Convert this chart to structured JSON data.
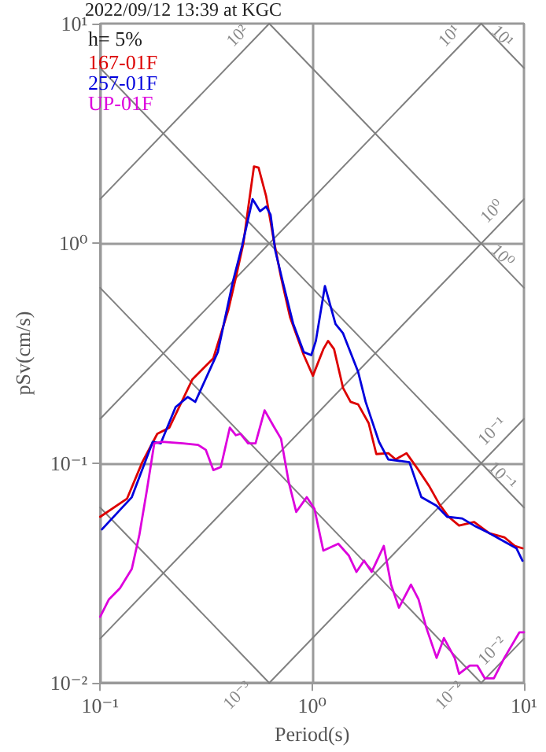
{
  "chart_data": {
    "type": "line",
    "title": "2022/09/12 13:39 at KGC",
    "xlabel": "Period(s)",
    "ylabel": "pSv(cm/s)",
    "annotations": [
      "h= 5%",
      {
        "text": "10²",
        "x": 0.628,
        "y": 10
      },
      {
        "text": "10¹",
        "x": 6.28,
        "y": 10
      },
      {
        "text": "10⁰",
        "x": 10,
        "y": 1.59
      },
      {
        "text": "10⁻¹",
        "x": 10,
        "y": 0.159
      },
      {
        "text": "10⁻²",
        "x": 10,
        "y": 0.0159
      },
      {
        "text": "10¹",
        "x": 10,
        "y": 6.28
      },
      {
        "text": "10⁰",
        "x": 10,
        "y": 0.628
      },
      {
        "text": "10⁻¹",
        "x": 10,
        "y": 0.0628
      },
      {
        "text": "10⁻²",
        "x": 6.28,
        "y": 0.01
      },
      {
        "text": "10⁻³",
        "x": 0.628,
        "y": 0.01
      }
    ],
    "log": "xy",
    "grid": true,
    "legend": "top left",
    "xlim": [
      0.1,
      10
    ],
    "ylim": [
      0.01,
      10
    ],
    "xticks": [
      {
        "value": 0.1,
        "label": "10⁻¹"
      },
      {
        "value": 1,
        "label": "10⁰"
      },
      {
        "value": 10,
        "label": "10¹"
      }
    ],
    "yticks": [
      {
        "value": 0.01,
        "label": "10⁻²"
      },
      {
        "value": 0.1,
        "label": "10⁻¹"
      },
      {
        "value": 1,
        "label": "10⁰"
      },
      {
        "value": 10,
        "label": "10¹"
      }
    ],
    "series": [
      {
        "name": "167-01F",
        "color": "#dd0000",
        "x": [
          0.1,
          0.134,
          0.158,
          0.186,
          0.212,
          0.272,
          0.342,
          0.403,
          0.437,
          0.474,
          0.499,
          0.532,
          0.559,
          0.607,
          0.659,
          0.714,
          0.788,
          0.914,
          1.009,
          1.13,
          1.19,
          1.27,
          1.4,
          1.52,
          1.65,
          1.85,
          2.01,
          2.29,
          2.48,
          2.79,
          3.18,
          3.56,
          3.99,
          4.41,
          4.94,
          5.82,
          6.86,
          8.08,
          9.06,
          9.84
        ],
        "values": [
          0.057,
          0.069,
          0.101,
          0.136,
          0.145,
          0.24,
          0.3,
          0.5,
          0.7,
          1.0,
          1.44,
          2.24,
          2.21,
          1.64,
          1.04,
          0.7,
          0.46,
          0.31,
          0.25,
          0.33,
          0.36,
          0.33,
          0.22,
          0.19,
          0.185,
          0.152,
          0.11,
          0.111,
          0.104,
          0.111,
          0.093,
          0.079,
          0.065,
          0.057,
          0.052,
          0.054,
          0.048,
          0.046,
          0.042,
          0.041
        ]
      },
      {
        "name": "257-01F",
        "color": "#0000dd",
        "x": [
          0.102,
          0.141,
          0.177,
          0.193,
          0.227,
          0.259,
          0.281,
          0.359,
          0.423,
          0.467,
          0.524,
          0.568,
          0.607,
          0.637,
          0.67,
          0.727,
          0.815,
          0.914,
          0.991,
          1.042,
          1.15,
          1.29,
          1.4,
          1.65,
          1.79,
          2.07,
          2.29,
          2.88,
          3.28,
          3.87,
          4.34,
          5.11,
          5.82,
          6.86,
          8.08,
          9.21,
          9.84
        ],
        "values": [
          0.05,
          0.07,
          0.125,
          0.123,
          0.18,
          0.2,
          0.19,
          0.32,
          0.67,
          0.97,
          1.59,
          1.4,
          1.47,
          1.35,
          0.93,
          0.67,
          0.43,
          0.32,
          0.31,
          0.36,
          0.64,
          0.43,
          0.39,
          0.26,
          0.19,
          0.125,
          0.104,
          0.101,
          0.07,
          0.064,
          0.057,
          0.056,
          0.052,
          0.048,
          0.044,
          0.041,
          0.036
        ]
      },
      {
        "name": "UP-01F",
        "color": "#dd00dd",
        "x": [
          0.1,
          0.11,
          0.124,
          0.141,
          0.153,
          0.166,
          0.18,
          0.196,
          0.246,
          0.29,
          0.315,
          0.342,
          0.371,
          0.409,
          0.437,
          0.459,
          0.499,
          0.541,
          0.597,
          0.659,
          0.714,
          0.776,
          0.842,
          0.944,
          1.026,
          1.13,
          1.33,
          1.49,
          1.62,
          1.76,
          1.91,
          2.18,
          2.36,
          2.57,
          2.93,
          3.18,
          3.45,
          3.87,
          4.19,
          4.71,
          4.94,
          5.55,
          6.02,
          6.53,
          7.21,
          8.08,
          9.52,
          10
        ],
        "values": [
          0.02,
          0.024,
          0.027,
          0.033,
          0.047,
          0.075,
          0.123,
          0.125,
          0.123,
          0.121,
          0.115,
          0.093,
          0.096,
          0.145,
          0.134,
          0.136,
          0.123,
          0.123,
          0.174,
          0.147,
          0.129,
          0.082,
          0.06,
          0.07,
          0.062,
          0.04,
          0.043,
          0.038,
          0.032,
          0.036,
          0.032,
          0.042,
          0.028,
          0.022,
          0.028,
          0.024,
          0.018,
          0.013,
          0.016,
          0.013,
          0.011,
          0.012,
          0.012,
          0.0105,
          0.0105,
          0.013,
          0.017,
          0.017
        ]
      },
      {
        "color": "#808080",
        "x": [
          0.1,
          0.628
        ],
        "values": [
          1.59,
          10
        ]
      },
      {
        "color": "#808080",
        "x": [
          0.1,
          6.28
        ],
        "values": [
          0.159,
          10
        ]
      },
      {
        "color": "#808080",
        "x": [
          0.1,
          10
        ],
        "values": [
          0.0159,
          1.59
        ]
      },
      {
        "color": "#808080",
        "x": [
          0.628,
          10
        ],
        "values": [
          0.01,
          0.159
        ]
      },
      {
        "color": "#808080",
        "x": [
          6.28,
          10
        ],
        "values": [
          0.01,
          0.0159
        ]
      },
      {
        "color": "#808080",
        "x": [
          6.28,
          10
        ],
        "values": [
          10,
          6.28
        ]
      },
      {
        "color": "#808080",
        "x": [
          0.628,
          10
        ],
        "values": [
          10,
          0.628
        ]
      },
      {
        "color": "#808080",
        "x": [
          0.1,
          10
        ],
        "values": [
          6.28,
          0.0628
        ]
      },
      {
        "color": "#808080",
        "x": [
          0.1,
          6.28
        ],
        "values": [
          0.628,
          0.01
        ]
      },
      {
        "color": "#808080",
        "x": [
          0.1,
          0.628
        ],
        "values": [
          0.0628,
          0.01
        ]
      }
    ]
  }
}
